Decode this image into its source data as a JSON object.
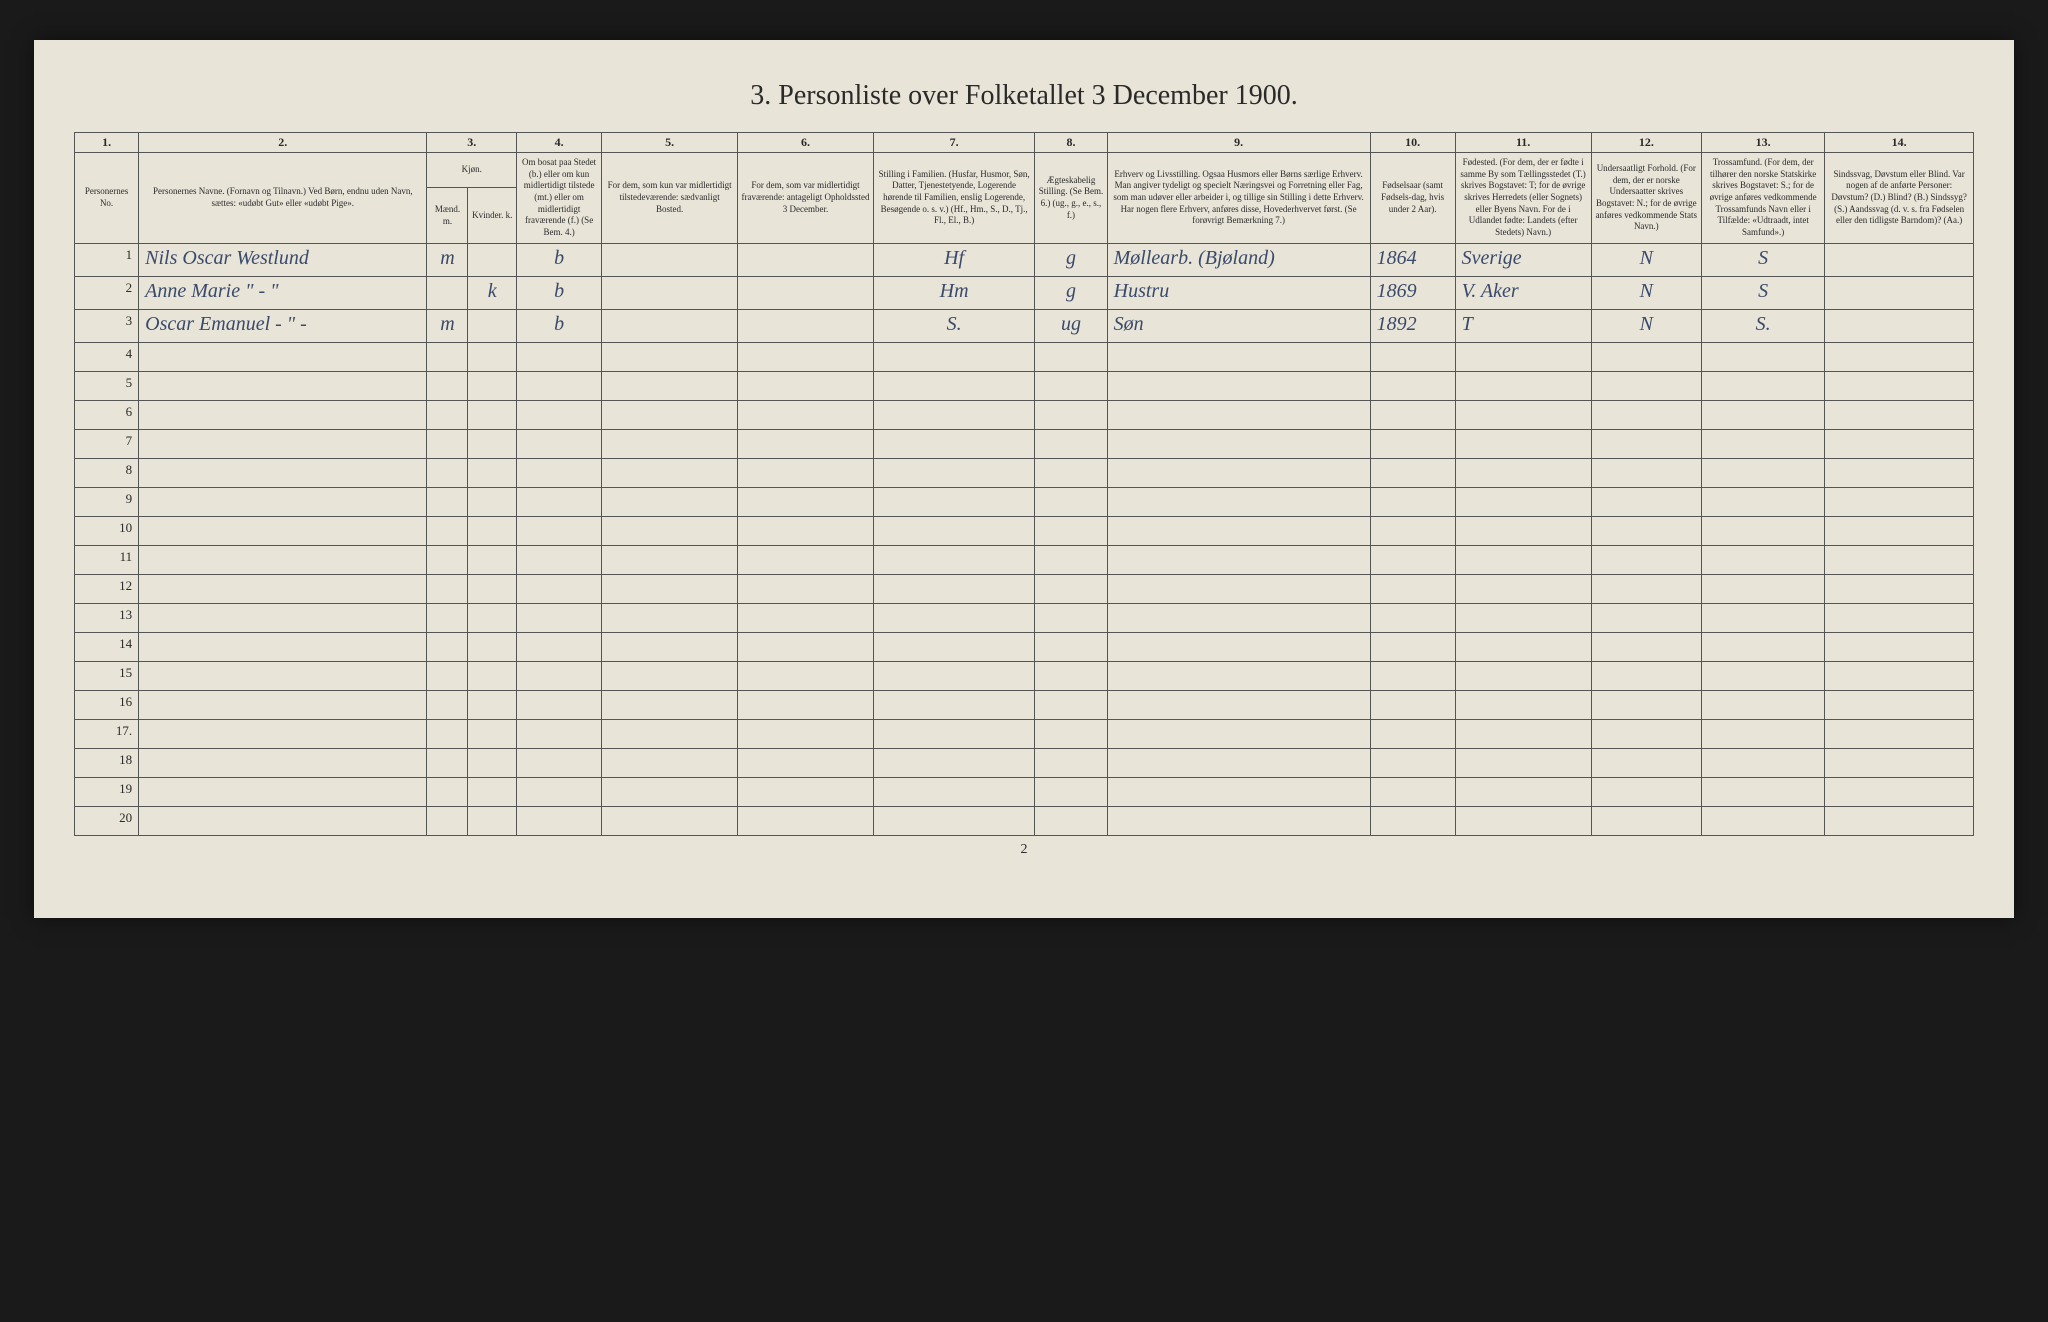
{
  "title": "3. Personliste over Folketallet 3 December 1900.",
  "footer_page": "2",
  "col_numbers": [
    "1.",
    "2.",
    "3.",
    "4.",
    "5.",
    "6.",
    "7.",
    "8.",
    "9.",
    "10.",
    "11.",
    "12.",
    "13.",
    "14."
  ],
  "headers": {
    "c1": "Personernes No.",
    "c2": "Personernes Navne.\n(Fornavn og Tilnavn.)\nVed Børn, endnu uden Navn, sættes: «udøbt Gut» eller «udøbt Pige».",
    "c3": "Kjøn.",
    "c3a": "Mænd.\nm.",
    "c3b": "Kvinder.\nk.",
    "c4": "Om bosat paa Stedet (b.) eller om kun midlertidigt tilstede (mt.) eller om midlertidigt fraværende (f.)\n(Se Bem. 4.)",
    "c5": "For dem, som kun var midlertidigt tilstedeværende:\nsædvanligt Bosted.",
    "c6": "For dem, som var midlertidigt fraværende:\nantageligt Opholdssted 3 December.",
    "c7": "Stilling i Familien.\n(Husfar, Husmor, Søn, Datter, Tjenestetyende, Logerende hørende til Familien, enslig Logerende, Besøgende o. s. v.)\n(Hf., Hm., S., D., Tj., Fl., El., B.)",
    "c8": "Ægteskabelig Stilling.\n(Se Bem. 6.)\n(ug., g., e., s., f.)",
    "c9": "Erhverv og Livsstilling.\nOgsaa Husmors eller Børns særlige Erhverv. Man angiver tydeligt og specielt Næringsvei og Forretning eller Fag, som man udøver eller arbeider i, og tillige sin Stilling i dette Erhverv. Har nogen flere Erhverv, anføres disse, Hovederhvervet først.\n(Se forøvrigt Bemærkning 7.)",
    "c10": "Fødselsaar\n(samt Fødsels-dag, hvis under 2 Aar).",
    "c11": "Fødested.\n(For dem, der er fødte i samme By som Tællingsstedet (T.) skrives Bogstavet: T; for de øvrige skrives Herredets (eller Sognets) eller Byens Navn. For de i Udlandet fødte: Landets (efter Stedets) Navn.)",
    "c12": "Undersaatligt Forhold.\n(For dem, der er norske Undersaatter skrives Bogstavet: N.; for de øvrige anføres vedkommende Stats Navn.)",
    "c13": "Trossamfund.\n(For dem, der tilhører den norske Statskirke skrives Bogstavet: S.; for de øvrige anføres vedkommende Trossamfunds Navn eller i Tilfælde: «Udtraadt, intet Samfund».)",
    "c14": "Sindssvag, Døvstum eller Blind.\nVar nogen af de anførte Personer: Døvstum? (D.) Blind? (B.) Sindssyg? (S.) Aandssvag (d. v. s. fra Fødselen eller den tidligste Barndom)? (Aa.)"
  },
  "rows": [
    {
      "n": "1",
      "name": "Nils Oscar Westlund",
      "m": "m",
      "k": "",
      "res": "b",
      "c5": "",
      "c6": "",
      "fam": "Hf",
      "egt": "g",
      "erhv": "Møllearb. (Bjøland)",
      "aar": "1864",
      "fsted": "Sverige",
      "und": "N",
      "tros": "S",
      "c14": ""
    },
    {
      "n": "2",
      "name": "Anne Marie    \" - \"",
      "m": "",
      "k": "k",
      "res": "b",
      "c5": "",
      "c6": "",
      "fam": "Hm",
      "egt": "g",
      "erhv": "Hustru",
      "aar": "1869",
      "fsted": "V. Aker",
      "und": "N",
      "tros": "S",
      "c14": ""
    },
    {
      "n": "3",
      "name": "Oscar Emanuel  - \" -",
      "m": "m",
      "k": "",
      "res": "b",
      "c5": "",
      "c6": "",
      "fam": "S.",
      "egt": "ug",
      "erhv": "Søn",
      "aar": "1892",
      "fsted": "T",
      "und": "N",
      "tros": "S.",
      "c14": ""
    }
  ],
  "empty_rows": [
    "4",
    "5",
    "6",
    "7",
    "8",
    "9",
    "10",
    "11",
    "12",
    "13",
    "14",
    "15",
    "16",
    "17.",
    "18",
    "19",
    "20"
  ],
  "table": {
    "border_color": "#555555",
    "background_color": "#e8e4d8",
    "ink_color": "#3a4a6a",
    "print_color": "#2a2a2a",
    "header_fontsize": 9,
    "title_fontsize": 28,
    "data_fontsize": 20,
    "rownum_fontsize": 13
  }
}
